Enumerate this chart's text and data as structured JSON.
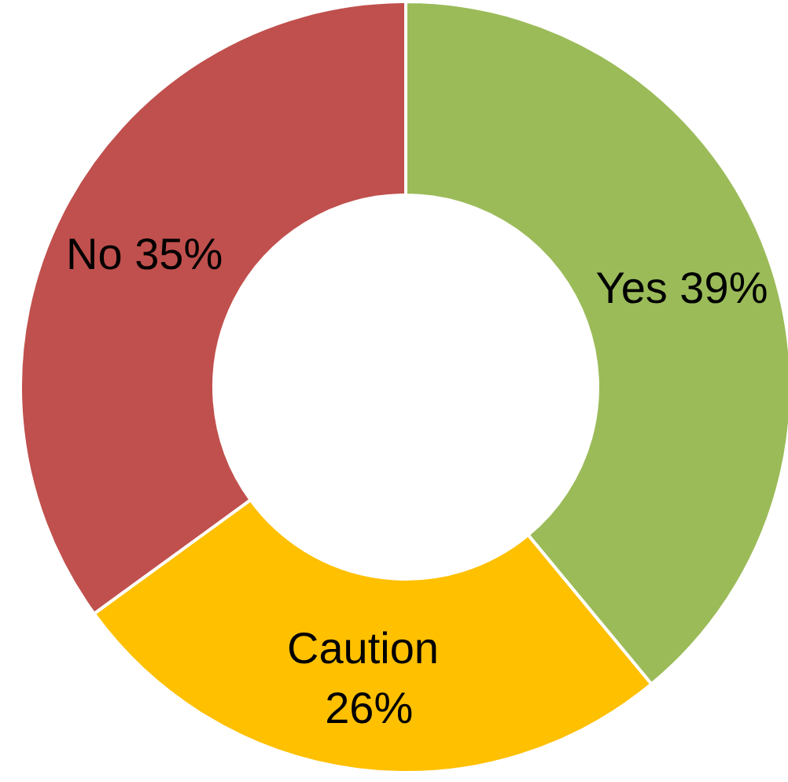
{
  "chart_data": {
    "type": "donut",
    "categories": [
      "Yes",
      "Caution",
      "No"
    ],
    "values": [
      39,
      26,
      35
    ],
    "colors": [
      "#9bbb59",
      "#ffc000",
      "#c0504d"
    ],
    "value_labels": [
      "39%",
      "26%",
      "35%"
    ],
    "legend": false
  }
}
